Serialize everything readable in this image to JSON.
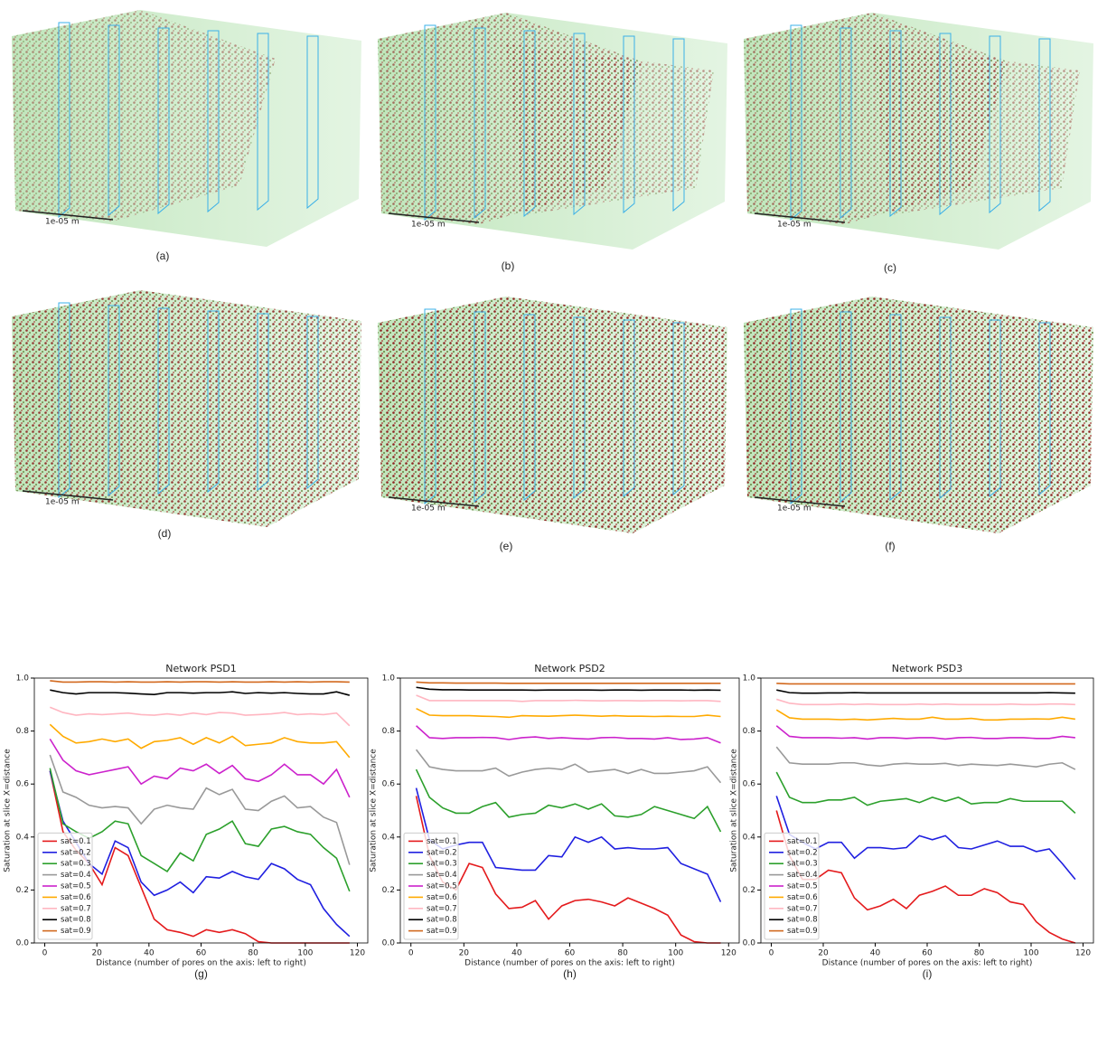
{
  "panels": [
    {
      "label": "(a)",
      "scale_bar": "1e-05 m"
    },
    {
      "label": "(b)",
      "scale_bar": "1e-05 m"
    },
    {
      "label": "(c)",
      "scale_bar": "1e-05 m"
    },
    {
      "label": "(d)",
      "scale_bar": "1e-05 m"
    },
    {
      "label": "(e)",
      "scale_bar": "1e-05 m"
    },
    {
      "label": "(f)",
      "scale_bar": "1e-05 m"
    }
  ],
  "chart_data": [
    {
      "type": "line",
      "title": "Network PSD1",
      "caption": "(g)",
      "x_label": "Distance (number of pores on the axis: left to right)",
      "y_label": "Saturation at slice X=distance",
      "legend": "lower left",
      "xlim": [
        -4,
        124
      ],
      "xticks": [
        0,
        20,
        40,
        60,
        80,
        100,
        120
      ],
      "ylim": [
        0,
        1
      ],
      "yticks": [
        {
          "value": 0,
          "label": "0.0"
        },
        {
          "value": 0.2,
          "label": "0.2"
        },
        {
          "value": 0.4,
          "label": "0.4"
        },
        {
          "value": 0.6,
          "label": "0.6"
        },
        {
          "value": 0.8,
          "label": "0.8"
        },
        {
          "value": 1,
          "label": "1.0"
        }
      ],
      "x": [
        2,
        7,
        12,
        17,
        22,
        27,
        32,
        37,
        42,
        47,
        52,
        57,
        62,
        67,
        72,
        77,
        82,
        87,
        92,
        97,
        102,
        107,
        112,
        117
      ],
      "series": [
        {
          "name": "sat=0.1",
          "color": "#e41a1c",
          "values": [
            0.65,
            0.42,
            0.35,
            0.3,
            0.22,
            0.36,
            0.33,
            0.21,
            0.09,
            0.05,
            0.04,
            0.025,
            0.05,
            0.04,
            0.05,
            0.035,
            0.005,
            0,
            0,
            0,
            0,
            0,
            0,
            0
          ]
        },
        {
          "name": "sat=0.2",
          "color": "#1f1fe0",
          "values": [
            0.65,
            0.46,
            0.38,
            0.3,
            0.26,
            0.385,
            0.36,
            0.23,
            0.18,
            0.2,
            0.23,
            0.19,
            0.25,
            0.245,
            0.27,
            0.25,
            0.24,
            0.3,
            0.28,
            0.24,
            0.22,
            0.13,
            0.07,
            0.025
          ]
        },
        {
          "name": "sat=0.3",
          "color": "#2ca02c",
          "values": [
            0.66,
            0.45,
            0.42,
            0.395,
            0.42,
            0.46,
            0.45,
            0.33,
            0.3,
            0.27,
            0.34,
            0.31,
            0.41,
            0.43,
            0.46,
            0.375,
            0.365,
            0.43,
            0.44,
            0.42,
            0.41,
            0.36,
            0.32,
            0.195
          ]
        },
        {
          "name": "sat=0.4",
          "color": "#999999",
          "values": [
            0.71,
            0.57,
            0.55,
            0.52,
            0.51,
            0.515,
            0.51,
            0.45,
            0.505,
            0.52,
            0.51,
            0.505,
            0.585,
            0.56,
            0.58,
            0.505,
            0.5,
            0.535,
            0.555,
            0.51,
            0.515,
            0.475,
            0.455,
            0.295
          ]
        },
        {
          "name": "sat=0.5",
          "color": "#cc22cc",
          "values": [
            0.77,
            0.69,
            0.65,
            0.635,
            0.645,
            0.655,
            0.665,
            0.6,
            0.63,
            0.62,
            0.66,
            0.65,
            0.675,
            0.64,
            0.67,
            0.62,
            0.61,
            0.635,
            0.675,
            0.635,
            0.635,
            0.6,
            0.655,
            0.55
          ]
        },
        {
          "name": "sat=0.6",
          "color": "#ffaa00",
          "values": [
            0.825,
            0.78,
            0.755,
            0.76,
            0.77,
            0.76,
            0.77,
            0.735,
            0.76,
            0.765,
            0.775,
            0.75,
            0.775,
            0.755,
            0.78,
            0.745,
            0.75,
            0.755,
            0.775,
            0.76,
            0.755,
            0.755,
            0.76,
            0.7
          ]
        },
        {
          "name": "sat=0.7",
          "color": "#ffb6c1",
          "values": [
            0.89,
            0.87,
            0.86,
            0.865,
            0.862,
            0.865,
            0.868,
            0.862,
            0.86,
            0.865,
            0.86,
            0.868,
            0.862,
            0.87,
            0.868,
            0.86,
            0.862,
            0.865,
            0.87,
            0.862,
            0.865,
            0.862,
            0.868,
            0.82
          ]
        },
        {
          "name": "sat=0.8",
          "color": "#000000",
          "values": [
            0.955,
            0.945,
            0.94,
            0.945,
            0.945,
            0.945,
            0.943,
            0.94,
            0.938,
            0.945,
            0.945,
            0.943,
            0.945,
            0.945,
            0.948,
            0.942,
            0.945,
            0.943,
            0.945,
            0.942,
            0.94,
            0.94,
            0.948,
            0.935
          ]
        },
        {
          "name": "sat=0.9",
          "color": "#d2691e",
          "values": [
            0.99,
            0.985,
            0.985,
            0.986,
            0.986,
            0.985,
            0.986,
            0.985,
            0.985,
            0.986,
            0.985,
            0.986,
            0.986,
            0.985,
            0.986,
            0.985,
            0.985,
            0.986,
            0.985,
            0.986,
            0.985,
            0.986,
            0.986,
            0.985
          ]
        }
      ]
    },
    {
      "type": "line",
      "title": "Network PSD2",
      "caption": "(h)",
      "x_label": "Distance (number of pores on the axis: left to right)",
      "y_label": "Saturation at slice X=distance",
      "legend": "lower left",
      "xlim": [
        -4,
        124
      ],
      "xticks": [
        0,
        20,
        40,
        60,
        80,
        100,
        120
      ],
      "ylim": [
        0,
        1
      ],
      "yticks": [
        {
          "value": 0,
          "label": "0.0"
        },
        {
          "value": 0.2,
          "label": "0.2"
        },
        {
          "value": 0.4,
          "label": "0.4"
        },
        {
          "value": 0.6,
          "label": "0.6"
        },
        {
          "value": 0.8,
          "label": "0.8"
        },
        {
          "value": 1,
          "label": "1.0"
        }
      ],
      "x": [
        2,
        7,
        12,
        17,
        22,
        27,
        32,
        37,
        42,
        47,
        52,
        57,
        62,
        67,
        72,
        77,
        82,
        87,
        92,
        97,
        102,
        107,
        112,
        117
      ],
      "series": [
        {
          "name": "sat=0.1",
          "color": "#e41a1c",
          "values": [
            0.555,
            0.33,
            0.23,
            0.2,
            0.3,
            0.285,
            0.185,
            0.13,
            0.135,
            0.16,
            0.09,
            0.14,
            0.16,
            0.165,
            0.155,
            0.14,
            0.17,
            0.15,
            0.13,
            0.105,
            0.03,
            0.005,
            0,
            0
          ]
        },
        {
          "name": "sat=0.2",
          "color": "#1f1fe0",
          "values": [
            0.585,
            0.39,
            0.355,
            0.37,
            0.38,
            0.38,
            0.285,
            0.28,
            0.275,
            0.275,
            0.33,
            0.325,
            0.4,
            0.38,
            0.4,
            0.355,
            0.36,
            0.355,
            0.355,
            0.36,
            0.3,
            0.28,
            0.26,
            0.155
          ]
        },
        {
          "name": "sat=0.3",
          "color": "#2ca02c",
          "values": [
            0.655,
            0.55,
            0.51,
            0.49,
            0.49,
            0.515,
            0.53,
            0.475,
            0.485,
            0.49,
            0.52,
            0.51,
            0.525,
            0.505,
            0.525,
            0.48,
            0.475,
            0.485,
            0.515,
            0.5,
            0.485,
            0.47,
            0.515,
            0.42
          ]
        },
        {
          "name": "sat=0.4",
          "color": "#999999",
          "values": [
            0.73,
            0.665,
            0.655,
            0.65,
            0.65,
            0.65,
            0.66,
            0.63,
            0.645,
            0.655,
            0.66,
            0.655,
            0.675,
            0.645,
            0.65,
            0.655,
            0.64,
            0.655,
            0.64,
            0.64,
            0.645,
            0.65,
            0.665,
            0.605
          ]
        },
        {
          "name": "sat=0.5",
          "color": "#cc22cc",
          "values": [
            0.82,
            0.775,
            0.772,
            0.775,
            0.775,
            0.776,
            0.775,
            0.768,
            0.775,
            0.778,
            0.772,
            0.775,
            0.772,
            0.77,
            0.775,
            0.776,
            0.772,
            0.772,
            0.77,
            0.775,
            0.768,
            0.77,
            0.775,
            0.755
          ]
        },
        {
          "name": "sat=0.6",
          "color": "#ffaa00",
          "values": [
            0.885,
            0.86,
            0.858,
            0.858,
            0.858,
            0.856,
            0.855,
            0.852,
            0.858,
            0.857,
            0.856,
            0.858,
            0.86,
            0.858,
            0.856,
            0.858,
            0.856,
            0.856,
            0.855,
            0.856,
            0.855,
            0.855,
            0.86,
            0.855
          ]
        },
        {
          "name": "sat=0.7",
          "color": "#ffb6c1",
          "values": [
            0.935,
            0.915,
            0.915,
            0.915,
            0.915,
            0.915,
            0.915,
            0.915,
            0.912,
            0.915,
            0.915,
            0.915,
            0.916,
            0.915,
            0.914,
            0.915,
            0.915,
            0.914,
            0.915,
            0.915,
            0.914,
            0.915,
            0.915,
            0.912
          ]
        },
        {
          "name": "sat=0.8",
          "color": "#000000",
          "values": [
            0.965,
            0.958,
            0.956,
            0.956,
            0.955,
            0.955,
            0.955,
            0.955,
            0.955,
            0.954,
            0.955,
            0.955,
            0.955,
            0.955,
            0.954,
            0.955,
            0.955,
            0.954,
            0.955,
            0.955,
            0.955,
            0.954,
            0.955,
            0.954
          ]
        },
        {
          "name": "sat=0.9",
          "color": "#d2691e",
          "values": [
            0.985,
            0.982,
            0.982,
            0.981,
            0.981,
            0.981,
            0.981,
            0.98,
            0.98,
            0.98,
            0.98,
            0.98,
            0.98,
            0.98,
            0.98,
            0.98,
            0.98,
            0.98,
            0.98,
            0.98,
            0.98,
            0.98,
            0.98,
            0.98
          ]
        }
      ]
    },
    {
      "type": "line",
      "title": "Network PSD3",
      "caption": "(i)",
      "x_label": "Distance (number of pores on the axis: left to right)",
      "y_label": "Saturation at slice X=distance",
      "legend": "lower left",
      "xlim": [
        -4,
        124
      ],
      "xticks": [
        0,
        20,
        40,
        60,
        80,
        100,
        120
      ],
      "ylim": [
        0,
        1
      ],
      "yticks": [
        {
          "value": 0,
          "label": "0.0"
        },
        {
          "value": 0.2,
          "label": "0.2"
        },
        {
          "value": 0.4,
          "label": "0.4"
        },
        {
          "value": 0.6,
          "label": "0.6"
        },
        {
          "value": 0.8,
          "label": "0.8"
        },
        {
          "value": 1,
          "label": "1.0"
        }
      ],
      "x": [
        2,
        7,
        12,
        17,
        22,
        27,
        32,
        37,
        42,
        47,
        52,
        57,
        62,
        67,
        72,
        77,
        82,
        87,
        92,
        97,
        102,
        107,
        112,
        117
      ],
      "series": [
        {
          "name": "sat=0.1",
          "color": "#e41a1c",
          "values": [
            0.5,
            0.33,
            0.24,
            0.24,
            0.275,
            0.265,
            0.17,
            0.125,
            0.14,
            0.165,
            0.13,
            0.18,
            0.195,
            0.215,
            0.18,
            0.18,
            0.205,
            0.19,
            0.155,
            0.145,
            0.08,
            0.04,
            0.015,
            0
          ]
        },
        {
          "name": "sat=0.2",
          "color": "#1f1fe0",
          "values": [
            0.555,
            0.41,
            0.38,
            0.355,
            0.38,
            0.38,
            0.32,
            0.36,
            0.36,
            0.355,
            0.36,
            0.405,
            0.39,
            0.405,
            0.36,
            0.355,
            0.37,
            0.385,
            0.365,
            0.365,
            0.345,
            0.355,
            0.3,
            0.24
          ]
        },
        {
          "name": "sat=0.3",
          "color": "#2ca02c",
          "values": [
            0.645,
            0.55,
            0.53,
            0.53,
            0.54,
            0.54,
            0.55,
            0.52,
            0.535,
            0.54,
            0.545,
            0.53,
            0.55,
            0.535,
            0.55,
            0.525,
            0.53,
            0.53,
            0.545,
            0.535,
            0.535,
            0.535,
            0.535,
            0.49
          ]
        },
        {
          "name": "sat=0.4",
          "color": "#999999",
          "values": [
            0.74,
            0.68,
            0.675,
            0.675,
            0.675,
            0.68,
            0.68,
            0.672,
            0.668,
            0.675,
            0.678,
            0.675,
            0.675,
            0.678,
            0.67,
            0.675,
            0.672,
            0.67,
            0.675,
            0.67,
            0.665,
            0.675,
            0.68,
            0.655
          ]
        },
        {
          "name": "sat=0.5",
          "color": "#cc22cc",
          "values": [
            0.82,
            0.78,
            0.775,
            0.775,
            0.775,
            0.773,
            0.775,
            0.77,
            0.775,
            0.775,
            0.772,
            0.775,
            0.775,
            0.77,
            0.775,
            0.776,
            0.772,
            0.772,
            0.775,
            0.775,
            0.772,
            0.772,
            0.78,
            0.775
          ]
        },
        {
          "name": "sat=0.6",
          "color": "#ffaa00",
          "values": [
            0.88,
            0.85,
            0.845,
            0.845,
            0.845,
            0.843,
            0.845,
            0.842,
            0.845,
            0.848,
            0.845,
            0.845,
            0.852,
            0.845,
            0.845,
            0.848,
            0.842,
            0.842,
            0.845,
            0.845,
            0.846,
            0.845,
            0.852,
            0.845
          ]
        },
        {
          "name": "sat=0.7",
          "color": "#ffb6c1",
          "values": [
            0.92,
            0.905,
            0.9,
            0.9,
            0.9,
            0.902,
            0.9,
            0.902,
            0.9,
            0.9,
            0.9,
            0.902,
            0.9,
            0.902,
            0.9,
            0.9,
            0.9,
            0.9,
            0.902,
            0.9,
            0.9,
            0.902,
            0.902,
            0.9
          ]
        },
        {
          "name": "sat=0.8",
          "color": "#000000",
          "values": [
            0.955,
            0.945,
            0.943,
            0.943,
            0.944,
            0.944,
            0.945,
            0.944,
            0.944,
            0.944,
            0.944,
            0.944,
            0.944,
            0.944,
            0.944,
            0.944,
            0.944,
            0.944,
            0.944,
            0.944,
            0.944,
            0.945,
            0.944,
            0.943
          ]
        },
        {
          "name": "sat=0.9",
          "color": "#d2691e",
          "values": [
            0.98,
            0.978,
            0.978,
            0.978,
            0.978,
            0.978,
            0.978,
            0.978,
            0.978,
            0.978,
            0.978,
            0.978,
            0.978,
            0.978,
            0.978,
            0.978,
            0.978,
            0.978,
            0.978,
            0.978,
            0.978,
            0.978,
            0.978,
            0.978
          ]
        }
      ]
    }
  ]
}
